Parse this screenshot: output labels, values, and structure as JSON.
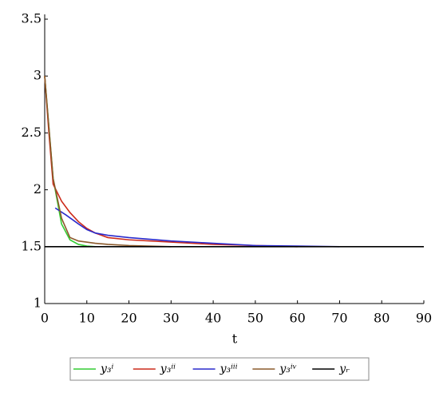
{
  "chart_data": {
    "type": "line",
    "xlabel": "t",
    "xlim": [
      0,
      90
    ],
    "xticks": [
      0,
      10,
      20,
      30,
      40,
      50,
      60,
      70,
      80,
      90
    ],
    "ylim": [
      1,
      3.5
    ],
    "yticks": [
      1,
      1.5,
      2,
      2.5,
      3,
      3.5
    ],
    "series": [
      {
        "name": "y₃ⁱ",
        "color": "#33cc33",
        "x": [
          0,
          2,
          4,
          6,
          8,
          10,
          12
        ],
        "values": [
          3,
          2.1,
          1.7,
          1.56,
          1.52,
          1.505,
          1.5
        ]
      },
      {
        "name": "y₃ⁱⁱ",
        "color": "#cc2a1a",
        "x": [
          0,
          1,
          2,
          4,
          6,
          8,
          10,
          12,
          15,
          20,
          30,
          40,
          50,
          60
        ],
        "values": [
          3,
          2.5,
          2.05,
          1.9,
          1.8,
          1.72,
          1.66,
          1.62,
          1.58,
          1.56,
          1.54,
          1.52,
          1.51,
          1.5
        ]
      },
      {
        "name": "y₃ⁱⁱⁱ",
        "color": "#2a2acc",
        "x": [
          2.5,
          5,
          8,
          10,
          12,
          15,
          20,
          30,
          40,
          50,
          60,
          70
        ],
        "values": [
          1.84,
          1.78,
          1.7,
          1.65,
          1.62,
          1.6,
          1.58,
          1.55,
          1.53,
          1.51,
          1.505,
          1.5
        ]
      },
      {
        "name": "y₃ⁱᵛ",
        "color": "#8b5a2b",
        "x": [
          0,
          2,
          4,
          6,
          8,
          12,
          15,
          20,
          30
        ],
        "values": [
          3,
          2.1,
          1.75,
          1.58,
          1.55,
          1.53,
          1.52,
          1.51,
          1.5
        ]
      },
      {
        "name": "yᵣ",
        "color": "#000000",
        "x": [
          0,
          90
        ],
        "values": [
          1.5,
          1.5
        ]
      }
    ]
  }
}
